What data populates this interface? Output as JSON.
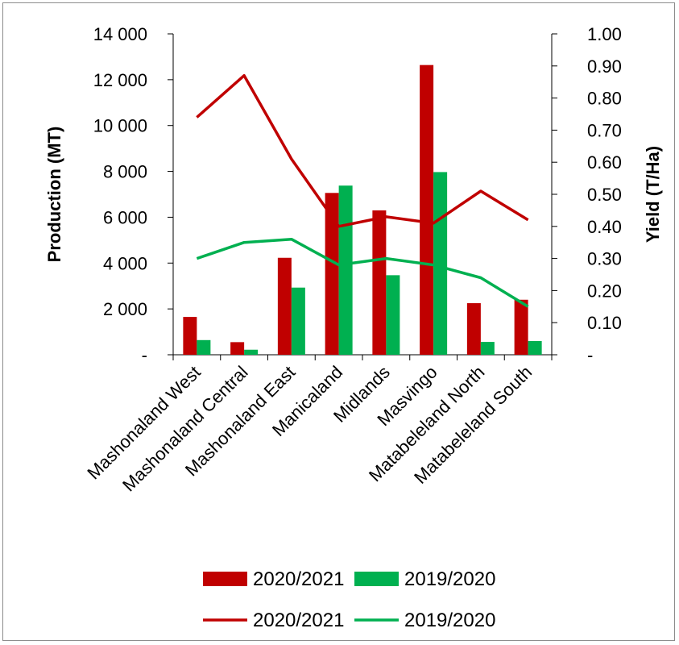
{
  "chart_data": {
    "type": "bar",
    "categories": [
      "Mashonaland West",
      "Mashonaland Central",
      "Mashonaland East",
      "Manicaland",
      "Midlands",
      "Masvingo",
      "Matabeleland North",
      "Matabeleland South"
    ],
    "series": [
      {
        "name": "2020/2021",
        "kind": "bar",
        "axis": "left",
        "color": "#c00000",
        "values": [
          1650,
          550,
          4230,
          7060,
          6300,
          12640,
          2250,
          2400
        ]
      },
      {
        "name": "2019/2020",
        "kind": "bar",
        "axis": "left",
        "color": "#00b050",
        "values": [
          640,
          220,
          2930,
          7380,
          3470,
          7970,
          560,
          600
        ]
      },
      {
        "name": "2020/2021",
        "kind": "line",
        "axis": "right",
        "color": "#c00000",
        "values": [
          0.74,
          0.87,
          0.61,
          0.4,
          0.43,
          0.41,
          0.51,
          0.42
        ]
      },
      {
        "name": "2019/2020",
        "kind": "line",
        "axis": "right",
        "color": "#00b050",
        "values": [
          0.3,
          0.35,
          0.36,
          0.28,
          0.3,
          0.28,
          0.24,
          0.15
        ]
      }
    ],
    "ylabel": "Production (MT)",
    "y2label": "Yield (T/Ha)",
    "ylim": [
      0,
      14000
    ],
    "y2lim": [
      0,
      1.0
    ],
    "yticks": [
      "-",
      "2 000",
      "4 000",
      "6 000",
      "8 000",
      "10 000",
      "12 000",
      "14 000"
    ],
    "y2ticks": [
      "-",
      "0.10",
      "0.20",
      "0.30",
      "0.40",
      "0.50",
      "0.60",
      "0.70",
      "0.80",
      "0.90",
      "1.00"
    ],
    "legend": {
      "position": "bottom",
      "entries": [
        {
          "label": "2020/2021",
          "kind": "bar",
          "color": "#c00000"
        },
        {
          "label": "2019/2020",
          "kind": "bar",
          "color": "#00b050"
        },
        {
          "label": "2020/2021",
          "kind": "line",
          "color": "#c00000"
        },
        {
          "label": "2019/2020",
          "kind": "line",
          "color": "#00b050"
        }
      ]
    },
    "grid": false
  }
}
